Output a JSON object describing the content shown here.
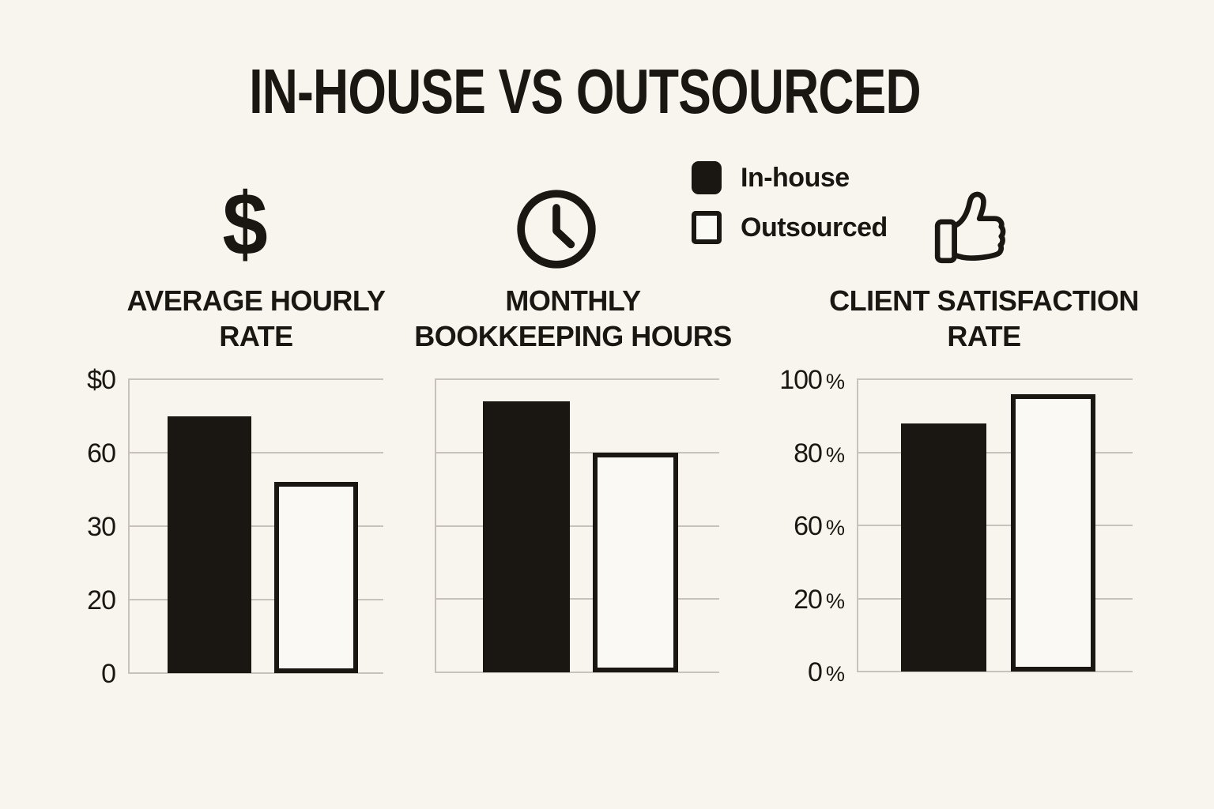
{
  "title": "IN-HOUSE VS OUTSOURCED",
  "colors": {
    "background": "#f8f5ef",
    "ink": "#1a1712",
    "grid": "#c7c3bc",
    "bar_light_fill": "#fbf9f3"
  },
  "icons": {
    "dollar_glyph": "$",
    "dollar": "dollar-sign",
    "clock": "clock",
    "thumbs_up": "thumbs-up"
  },
  "legend": {
    "items": [
      {
        "label": "In-house",
        "swatch": "filled-black"
      },
      {
        "label": "Outsourced",
        "swatch": "outline-white"
      }
    ]
  },
  "chart_data": [
    {
      "type": "bar",
      "title": "AVERAGE HOURLY RATE",
      "title_lines": [
        "AVERAGE HOURLY",
        "RATE"
      ],
      "icon": "dollar-sign",
      "categories": [
        "In-house",
        "Outsourced"
      ],
      "values": [
        70,
        52
      ],
      "ylim": [
        0,
        80
      ],
      "y_tick_labels_top_to_bottom": [
        "$0",
        "60",
        "30",
        "20",
        "0"
      ],
      "grid": true,
      "legend_position": "top-shared"
    },
    {
      "type": "bar",
      "title": "MONTHLY BOOKKEEPING HOURS",
      "title_lines": [
        "MONTHLY",
        "BOOKKEEPING HOURS"
      ],
      "icon": "clock",
      "categories": [
        "In-house",
        "Outsourced"
      ],
      "values": [
        74,
        60
      ],
      "ylim": [
        0,
        80
      ],
      "y_tick_labels_top_to_bottom": [
        "",
        "",
        "",
        "",
        ""
      ],
      "grid": true,
      "legend_position": "top-shared"
    },
    {
      "type": "bar",
      "title": "CLIENT SATISFACTION RATE",
      "title_lines": [
        "CLIENT SATISFACTION",
        "RATE"
      ],
      "icon": "thumbs-up",
      "categories": [
        "In-house",
        "Outsourced"
      ],
      "values": [
        85,
        95
      ],
      "ylim": [
        0,
        100
      ],
      "y_tick_labels_top_to_bottom": [
        "100 %",
        "80 %",
        "60 %",
        "20 %",
        "0 %"
      ],
      "grid": true,
      "legend_position": "top-shared"
    }
  ]
}
